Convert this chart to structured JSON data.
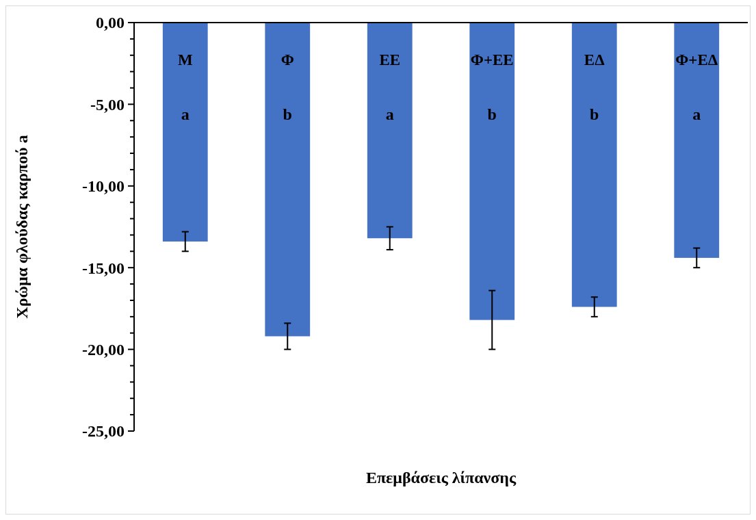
{
  "chart_data": {
    "type": "bar",
    "ylabel": "Χρώμα φλούδας καρπού a",
    "xlabel": "Επεμβάσεις λίπανσης",
    "categories": [
      "Μ",
      "Φ",
      "ΕΕ",
      "Φ+ΕΕ",
      "ΕΔ",
      "Φ+ΕΔ"
    ],
    "values": [
      -13.4,
      -19.2,
      -13.2,
      -18.2,
      -17.4,
      -14.4
    ],
    "errors": [
      0.6,
      0.8,
      0.7,
      1.8,
      0.6,
      0.6
    ],
    "color": "#4472c4",
    "ylim": [
      -25,
      0
    ],
    "yticks": [
      {
        "value": 0,
        "label": "0,00"
      },
      {
        "value": -1,
        "label": null
      },
      {
        "value": -2,
        "label": null
      },
      {
        "value": -3,
        "label": null
      },
      {
        "value": -4,
        "label": null
      },
      {
        "value": -5,
        "label": "-5,00"
      },
      {
        "value": -6,
        "label": null
      },
      {
        "value": -7,
        "label": null
      },
      {
        "value": -8,
        "label": null
      },
      {
        "value": -9,
        "label": null
      },
      {
        "value": -10,
        "label": "-10,00"
      },
      {
        "value": -11,
        "label": null
      },
      {
        "value": -12,
        "label": null
      },
      {
        "value": -13,
        "label": null
      },
      {
        "value": -14,
        "label": null
      },
      {
        "value": -15,
        "label": "-15,00"
      },
      {
        "value": -16,
        "label": null
      },
      {
        "value": -17,
        "label": null
      },
      {
        "value": -18,
        "label": null
      },
      {
        "value": -19,
        "label": null
      },
      {
        "value": -20,
        "label": "-20,00"
      },
      {
        "value": -21,
        "label": null
      },
      {
        "value": -22,
        "label": null
      },
      {
        "value": -23,
        "label": null
      },
      {
        "value": -24,
        "label": null
      },
      {
        "value": -25,
        "label": "-25,00"
      }
    ],
    "annotations": [
      "a",
      "b",
      "a",
      "b",
      "b",
      "a"
    ]
  }
}
